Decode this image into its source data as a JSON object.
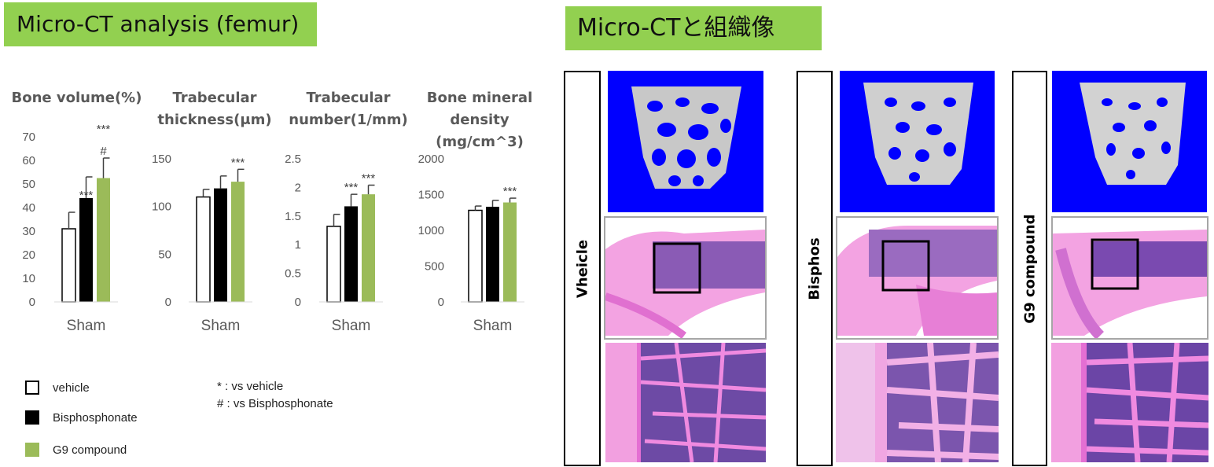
{
  "left_title": "Micro-CT analysis (femur)",
  "right_title": "Micro-CTと組織像",
  "colors": {
    "title_bg": "#92d050",
    "vehicle": "#ffffff",
    "bisphosphonate": "#000000",
    "g9": "#9bbb59",
    "ct_bg": "#0000ff",
    "he_pink": "#e87ad6",
    "he_purple": "#6a3fa0"
  },
  "legend": [
    {
      "label": "vehicle",
      "color": "#ffffff"
    },
    {
      "label": "Bisphosphonate",
      "color": "#000000"
    },
    {
      "label": "G9 compound",
      "color": "#9bbb59"
    }
  ],
  "notes": [
    "* : vs vehicle",
    "# : vs Bisphosphonate"
  ],
  "chart_data": [
    {
      "type": "bar",
      "title": "Bone volume(%)",
      "categories": [
        "Sham"
      ],
      "series": [
        {
          "name": "vehicle",
          "values": [
            31
          ],
          "error": [
            7
          ]
        },
        {
          "name": "Bisphosphonate",
          "values": [
            44
          ],
          "error": [
            9
          ]
        },
        {
          "name": "G9 compound",
          "values": [
            52.5
          ],
          "error": [
            8.5
          ]
        }
      ],
      "ylim": [
        0,
        70
      ],
      "yticks": [
        "0",
        "10",
        "20",
        "30",
        "40",
        "50",
        "60",
        "70"
      ],
      "annotations": [
        {
          "series": 1,
          "lines": [
            "***"
          ]
        },
        {
          "series": 2,
          "lines": [
            "***",
            "#"
          ]
        }
      ]
    },
    {
      "type": "bar",
      "title": "Trabecular thickness(μm)",
      "categories": [
        "Sham"
      ],
      "series": [
        {
          "name": "vehicle",
          "values": [
            110
          ],
          "error": [
            8
          ]
        },
        {
          "name": "Bisphosphonate",
          "values": [
            119
          ],
          "error": [
            13
          ]
        },
        {
          "name": "G9 compound",
          "values": [
            126
          ],
          "error": [
            13
          ]
        }
      ],
      "ylim": [
        0,
        150
      ],
      "yticks": [
        "0",
        "50",
        "100",
        "150"
      ],
      "annotations": [
        {
          "series": 2,
          "lines": [
            "***"
          ]
        }
      ]
    },
    {
      "type": "bar",
      "title": "Trabecular number(1/mm)",
      "categories": [
        "Sham"
      ],
      "series": [
        {
          "name": "vehicle",
          "values": [
            1.32
          ],
          "error": [
            0.21
          ]
        },
        {
          "name": "Bisphosphonate",
          "values": [
            1.67
          ],
          "error": [
            0.21
          ]
        },
        {
          "name": "G9 compound",
          "values": [
            1.88
          ],
          "error": [
            0.16
          ]
        }
      ],
      "ylim": [
        0,
        2.5
      ],
      "yticks": [
        "0",
        "0.5",
        "1",
        "1.5",
        "2",
        "2.5"
      ],
      "annotations": [
        {
          "series": 1,
          "lines": [
            "***"
          ]
        },
        {
          "series": 2,
          "lines": [
            "***"
          ]
        }
      ]
    },
    {
      "type": "bar",
      "title": "Bone mineral density (mg/cm^3)",
      "categories": [
        "Sham"
      ],
      "series": [
        {
          "name": "vehicle",
          "values": [
            1280
          ],
          "error": [
            60
          ]
        },
        {
          "name": "Bisphosphonate",
          "values": [
            1330
          ],
          "error": [
            90
          ]
        },
        {
          "name": "G9 compound",
          "values": [
            1390
          ],
          "error": [
            60
          ]
        }
      ],
      "ylim": [
        0,
        2000
      ],
      "yticks": [
        "0",
        "500",
        "1000",
        "1500",
        "2000"
      ],
      "annotations": [
        {
          "series": 2,
          "lines": [
            "***"
          ]
        }
      ]
    }
  ],
  "chart_titles": [
    [
      "Bone volume(%)"
    ],
    [
      "Trabecular",
      "thickness(μm)"
    ],
    [
      "Trabecular",
      "number(1/mm)"
    ],
    [
      "Bone mineral",
      "density (mg/cm^3)"
    ]
  ],
  "image_panels": [
    {
      "label": "Vheicle"
    },
    {
      "label": "Bisphos"
    },
    {
      "label": "G9 compound"
    }
  ]
}
